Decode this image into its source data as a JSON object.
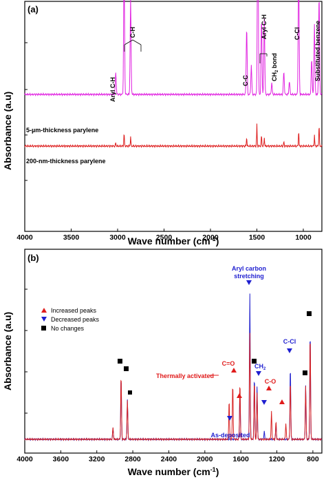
{
  "chart_data": [
    {
      "type": "line",
      "panel_label": "(a)",
      "xlabel": "Wave number (cm",
      "xlabel_sup": "-1",
      "xlabel_close": ")",
      "ylabel": "Absorbance (a.u)",
      "xlim": [
        4000,
        800
      ],
      "ylim": [
        0,
        10
      ],
      "xticks": [
        "4000",
        "3500",
        "3000",
        "2500",
        "2000",
        "1500",
        "1000"
      ],
      "series": [
        {
          "name": "5-µm-thickness parylene",
          "color": "#e020e0",
          "baseline": 6.1,
          "peaks": [
            [
              3020,
              1.0
            ],
            [
              2930,
              5.6
            ],
            [
              2860,
              4.3
            ],
            [
              1610,
              3.0
            ],
            [
              1560,
              1.3
            ],
            [
              1490,
              9.0
            ],
            [
              1450,
              3.4
            ],
            [
              1420,
              3.4
            ],
            [
              1340,
              0.5
            ],
            [
              1210,
              1.0
            ],
            [
              1150,
              0.6
            ],
            [
              1050,
              5.6
            ],
            [
              910,
              1.6
            ],
            [
              880,
              3.1
            ],
            [
              830,
              4.4
            ]
          ]
        },
        {
          "name": "200-nm-thickness parylene",
          "color": "#dd1c1c",
          "baseline": 3.8,
          "peaks": [
            [
              3020,
              0.15
            ],
            [
              2930,
              0.6
            ],
            [
              2860,
              0.45
            ],
            [
              1610,
              0.4
            ],
            [
              1500,
              1.0
            ],
            [
              1450,
              0.5
            ],
            [
              1420,
              0.4
            ],
            [
              1210,
              0.2
            ],
            [
              1050,
              0.7
            ],
            [
              880,
              0.5
            ],
            [
              830,
              1.0
            ]
          ]
        }
      ],
      "annotations": [
        "Aryl C-H",
        "C-H",
        "C-C",
        "Aryl C-H",
        "CH",
        "2",
        " bond",
        "C-Cl",
        "Substituted benzene"
      ]
    },
    {
      "type": "line",
      "panel_label": "(b)",
      "xlabel": "Wave number (cm",
      "xlabel_sup": "-1",
      "xlabel_close": ")",
      "ylabel": "Absorbance (a.u)",
      "xlim": [
        4000,
        700
      ],
      "ylim": [
        0,
        10
      ],
      "xticks": [
        "4000",
        "3600",
        "3200",
        "2800",
        "2400",
        "2000",
        "1600",
        "1200",
        "800"
      ],
      "series": [
        {
          "name": "As-deposited",
          "color": "#1c1ccc",
          "baseline": 0.7,
          "peaks": [
            [
              3020,
              0.6
            ],
            [
              2930,
              3.2
            ],
            [
              2860,
              2.0
            ],
            [
              1610,
              2.5
            ],
            [
              1500,
              7.4
            ],
            [
              1450,
              3.2
            ],
            [
              1420,
              2.7
            ],
            [
              1340,
              0.4
            ],
            [
              1210,
              0.8
            ],
            [
              1050,
              3.7
            ],
            [
              880,
              2.7
            ],
            [
              830,
              5.5
            ]
          ]
        },
        {
          "name": "Thermally activated",
          "color": "#d82020",
          "baseline": 0.7,
          "peaks": [
            [
              3020,
              0.6
            ],
            [
              2930,
              3.3
            ],
            [
              2860,
              2.0
            ],
            [
              1730,
              2.0
            ],
            [
              1690,
              2.8
            ],
            [
              1610,
              2.9
            ],
            [
              1500,
              5.4
            ],
            [
              1450,
              3.0
            ],
            [
              1420,
              2.4
            ],
            [
              1260,
              1.4
            ],
            [
              1210,
              0.9
            ],
            [
              1100,
              0.8
            ],
            [
              1050,
              3.0
            ],
            [
              880,
              2.7
            ],
            [
              830,
              5.4
            ]
          ]
        }
      ],
      "legend": [
        {
          "marker": "up-triangle",
          "color": "#e01b1b",
          "label": "Increased peaks"
        },
        {
          "marker": "down-triangle",
          "color": "#1f1fd0",
          "label": "Decreased peaks"
        },
        {
          "marker": "square",
          "color": "#000000",
          "label": "No changes"
        }
      ],
      "annotations": [
        "Aryl carbon",
        "stretching",
        "C-Cl",
        "CH",
        "2",
        "C=O",
        "C-O",
        "Thermally activated",
        "As-deposited"
      ]
    }
  ]
}
